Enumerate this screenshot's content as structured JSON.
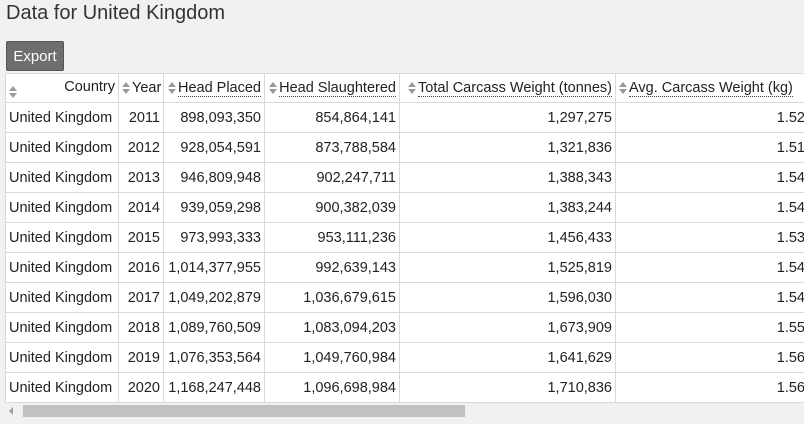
{
  "page": {
    "title": "Data for United Kingdom"
  },
  "toolbar": {
    "export_label": "Export"
  },
  "table": {
    "headers": {
      "country": "Country",
      "year": "Year",
      "head_placed": "Head Placed",
      "head_slaughtered": "Head Slaughtered",
      "total_carcass": "Total Carcass Weight (tonnes)",
      "avg_carcass": "Avg. Carcass Weight (kg)"
    },
    "rows": [
      [
        "United Kingdom",
        "2011",
        "898,093,350",
        "854,864,141",
        "1,297,275",
        "1.52"
      ],
      [
        "United Kingdom",
        "2012",
        "928,054,591",
        "873,788,584",
        "1,321,836",
        "1.51"
      ],
      [
        "United Kingdom",
        "2013",
        "946,809,948",
        "902,247,711",
        "1,388,343",
        "1.54"
      ],
      [
        "United Kingdom",
        "2014",
        "939,059,298",
        "900,382,039",
        "1,383,244",
        "1.54"
      ],
      [
        "United Kingdom",
        "2015",
        "973,993,333",
        "953,111,236",
        "1,456,433",
        "1.53"
      ],
      [
        "United Kingdom",
        "2016",
        "1,014,377,955",
        "992,639,143",
        "1,525,819",
        "1.54"
      ],
      [
        "United Kingdom",
        "2017",
        "1,049,202,879",
        "1,036,679,615",
        "1,596,030",
        "1.54"
      ],
      [
        "United Kingdom",
        "2018",
        "1,089,760,509",
        "1,083,094,203",
        "1,673,909",
        "1.55"
      ],
      [
        "United Kingdom",
        "2019",
        "1,076,353,564",
        "1,049,760,984",
        "1,641,629",
        "1.56"
      ],
      [
        "United Kingdom",
        "2020",
        "1,168,247,448",
        "1,096,698,984",
        "1,710,836",
        "1.56"
      ]
    ]
  }
}
